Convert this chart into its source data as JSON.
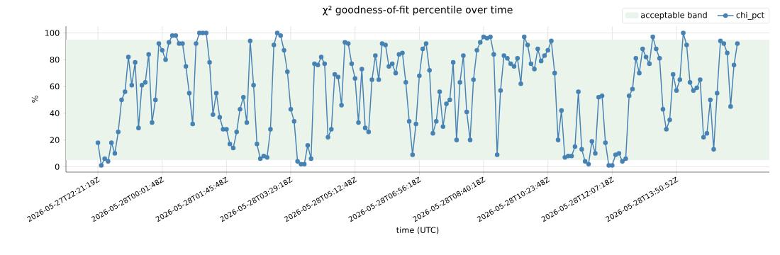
{
  "chart_data": {
    "type": "line",
    "title": "χ² goodness-of-fit percentile over time",
    "xlabel": "time (UTC)",
    "ylabel": "%",
    "categories": [
      "2026-05-27T22:21:19Z",
      null,
      null,
      null,
      null,
      null,
      null,
      null,
      null,
      null,
      null,
      null,
      null,
      null,
      null,
      null,
      null,
      null,
      null,
      "2026-05-28T00:01:48Z",
      null,
      null,
      null,
      null,
      null,
      null,
      null,
      null,
      null,
      null,
      null,
      null,
      null,
      null,
      null,
      null,
      null,
      null,
      "2026-05-28T01:45:48Z",
      null,
      null,
      null,
      null,
      null,
      null,
      null,
      null,
      null,
      null,
      null,
      null,
      null,
      null,
      null,
      null,
      null,
      null,
      "2026-05-28T03:29:18Z",
      null,
      null,
      null,
      null,
      null,
      null,
      null,
      null,
      null,
      null,
      null,
      null,
      null,
      null,
      null,
      null,
      null,
      null,
      "2026-05-28T05:12:48Z",
      null,
      null,
      null,
      null,
      null,
      null,
      null,
      null,
      null,
      null,
      null,
      null,
      null,
      null,
      null,
      null,
      null,
      null,
      "2026-05-28T06:56:18Z",
      null,
      null,
      null,
      null,
      null,
      null,
      null,
      null,
      null,
      null,
      null,
      null,
      null,
      null,
      null,
      null,
      null,
      null,
      "2026-05-28T08:40:18Z",
      null,
      null,
      null,
      null,
      null,
      null,
      null,
      null,
      null,
      null,
      null,
      null,
      null,
      null,
      null,
      null,
      null,
      null,
      "2026-05-28T10:23:48Z",
      null,
      null,
      null,
      null,
      null,
      null,
      null,
      null,
      null,
      null,
      null,
      null,
      null,
      null,
      null,
      null,
      null,
      null,
      "2026-05-28T12:07:18Z",
      null,
      null,
      null,
      null,
      null,
      null,
      null,
      null,
      null,
      null,
      null,
      null,
      null,
      null,
      null,
      null,
      null,
      null,
      "2026-05-28T13:50:52Z",
      null,
      null,
      null,
      null,
      null,
      null,
      null,
      null,
      null,
      null,
      null,
      null,
      null,
      null,
      null,
      null,
      null,
      null
    ],
    "series": [
      {
        "name": "chi_pct",
        "color": "#4682b4",
        "values": [
          18,
          1,
          6,
          4,
          18,
          10,
          26,
          50,
          56,
          82,
          61,
          78,
          29,
          61,
          63,
          84,
          33,
          50,
          92,
          87,
          80,
          93,
          98,
          98,
          92,
          92,
          75,
          55,
          32,
          92,
          100,
          100,
          100,
          78,
          39,
          55,
          37,
          28,
          28,
          17,
          14,
          26,
          43,
          52,
          33,
          94,
          61,
          17,
          6,
          8,
          7,
          28,
          91,
          100,
          98,
          87,
          71,
          43,
          34,
          4,
          2,
          2,
          16,
          6,
          77,
          76,
          82,
          77,
          22,
          28,
          69,
          67,
          46,
          93,
          92,
          77,
          66,
          33,
          73,
          29,
          26,
          65,
          83,
          65,
          92,
          91,
          75,
          77,
          70,
          84,
          85,
          63,
          34,
          9,
          32,
          68,
          88,
          92,
          72,
          25,
          34,
          56,
          30,
          47,
          50,
          78,
          20,
          63,
          83,
          41,
          20,
          65,
          87,
          93,
          97,
          96,
          97,
          84,
          9,
          57,
          83,
          81,
          77,
          75,
          81,
          62,
          97,
          91,
          77,
          73,
          88,
          79,
          83,
          87,
          94,
          70,
          20,
          42,
          7,
          8,
          8,
          15,
          56,
          13,
          4,
          2,
          19,
          10,
          52,
          53,
          18,
          1,
          1,
          9,
          10,
          4,
          6,
          53,
          58,
          81,
          70,
          88,
          82,
          77,
          97,
          88,
          81,
          43,
          28,
          35,
          69,
          57,
          65,
          100,
          91,
          63,
          57,
          59,
          65,
          22,
          25,
          50,
          13,
          55,
          94,
          92,
          85,
          45,
          76,
          92
        ]
      }
    ],
    "ylim": [
      -4,
      105
    ],
    "yticks": [
      0,
      20,
      40,
      60,
      80,
      100
    ],
    "grid": true,
    "legend": "top right",
    "marker": "circle",
    "bands": [
      {
        "axis": "y",
        "from": 5,
        "to": 95,
        "label": "acceptable band",
        "color": "#eaf4ea"
      }
    ]
  }
}
